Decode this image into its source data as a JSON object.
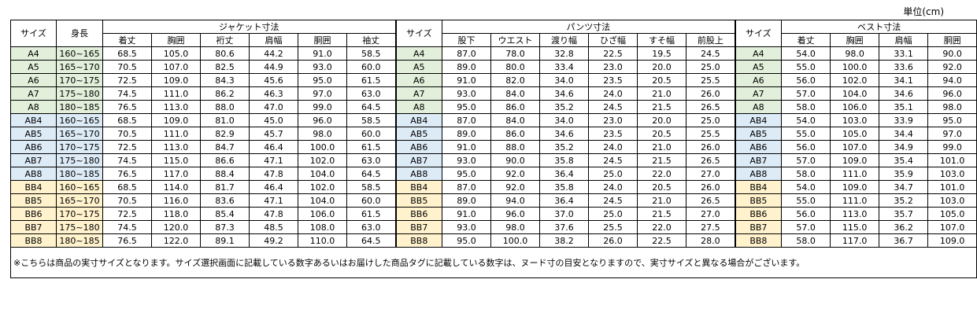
{
  "unit_label": "単位(cm)",
  "headers": {
    "size": "サイズ",
    "height": "身長",
    "jacket_group": "ジャケット寸法",
    "pants_group": "パンツ寸法",
    "vest_group": "ベスト寸法",
    "jacket_cols": [
      "着丈",
      "胸囲",
      "裄丈",
      "肩幅",
      "胴囲",
      "袖丈"
    ],
    "pants_cols": [
      "股下",
      "ウエスト",
      "渡り幅",
      "ひざ幅",
      "すそ幅",
      "前股上"
    ],
    "vest_cols": [
      "着丈",
      "胸囲",
      "肩幅",
      "胴囲"
    ]
  },
  "rows": [
    {
      "size": "A4",
      "height": "160~165",
      "jacket": [
        "68.5",
        "105.0",
        "80.6",
        "44.2",
        "91.0",
        "58.5"
      ],
      "pants": [
        "87.0",
        "78.0",
        "32.8",
        "22.5",
        "19.5",
        "24.5"
      ],
      "vest": [
        "54.0",
        "98.0",
        "33.1",
        "90.0"
      ]
    },
    {
      "size": "A5",
      "height": "165~170",
      "jacket": [
        "70.5",
        "107.0",
        "82.5",
        "44.9",
        "93.0",
        "60.0"
      ],
      "pants": [
        "89.0",
        "80.0",
        "33.4",
        "23.0",
        "20.0",
        "25.0"
      ],
      "vest": [
        "55.0",
        "100.0",
        "33.6",
        "92.0"
      ]
    },
    {
      "size": "A6",
      "height": "170~175",
      "jacket": [
        "72.5",
        "109.0",
        "84.3",
        "45.6",
        "95.0",
        "61.5"
      ],
      "pants": [
        "91.0",
        "82.0",
        "34.0",
        "23.5",
        "20.5",
        "25.5"
      ],
      "vest": [
        "56.0",
        "102.0",
        "34.1",
        "94.0"
      ]
    },
    {
      "size": "A7",
      "height": "175~180",
      "jacket": [
        "74.5",
        "111.0",
        "86.2",
        "46.3",
        "97.0",
        "63.0"
      ],
      "pants": [
        "93.0",
        "84.0",
        "34.6",
        "24.0",
        "21.0",
        "26.0"
      ],
      "vest": [
        "57.0",
        "104.0",
        "34.6",
        "96.0"
      ]
    },
    {
      "size": "A8",
      "height": "180~185",
      "jacket": [
        "76.5",
        "113.0",
        "88.0",
        "47.0",
        "99.0",
        "64.5"
      ],
      "pants": [
        "95.0",
        "86.0",
        "35.2",
        "24.5",
        "21.5",
        "26.5"
      ],
      "vest": [
        "58.0",
        "106.0",
        "35.1",
        "98.0"
      ]
    },
    {
      "size": "AB4",
      "height": "160~165",
      "jacket": [
        "68.5",
        "109.0",
        "81.0",
        "45.0",
        "96.0",
        "58.5"
      ],
      "pants": [
        "87.0",
        "84.0",
        "34.0",
        "23.0",
        "20.0",
        "25.0"
      ],
      "vest": [
        "54.0",
        "103.0",
        "33.9",
        "95.0"
      ]
    },
    {
      "size": "AB5",
      "height": "165~170",
      "jacket": [
        "70.5",
        "111.0",
        "82.9",
        "45.7",
        "98.0",
        "60.0"
      ],
      "pants": [
        "89.0",
        "86.0",
        "34.6",
        "23.5",
        "20.5",
        "25.5"
      ],
      "vest": [
        "55.0",
        "105.0",
        "34.4",
        "97.0"
      ]
    },
    {
      "size": "AB6",
      "height": "170~175",
      "jacket": [
        "72.5",
        "113.0",
        "84.7",
        "46.4",
        "100.0",
        "61.5"
      ],
      "pants": [
        "91.0",
        "88.0",
        "35.2",
        "24.0",
        "21.0",
        "26.0"
      ],
      "vest": [
        "56.0",
        "107.0",
        "34.9",
        "99.0"
      ]
    },
    {
      "size": "AB7",
      "height": "175~180",
      "jacket": [
        "74.5",
        "115.0",
        "86.6",
        "47.1",
        "102.0",
        "63.0"
      ],
      "pants": [
        "93.0",
        "90.0",
        "35.8",
        "24.5",
        "21.5",
        "26.5"
      ],
      "vest": [
        "57.0",
        "109.0",
        "35.4",
        "101.0"
      ]
    },
    {
      "size": "AB8",
      "height": "180~185",
      "jacket": [
        "76.5",
        "117.0",
        "88.4",
        "47.8",
        "104.0",
        "64.5"
      ],
      "pants": [
        "95.0",
        "92.0",
        "36.4",
        "25.0",
        "22.0",
        "27.0"
      ],
      "vest": [
        "58.0",
        "111.0",
        "35.9",
        "103.0"
      ]
    },
    {
      "size": "BB4",
      "height": "160~165",
      "jacket": [
        "68.5",
        "114.0",
        "81.7",
        "46.4",
        "102.0",
        "58.5"
      ],
      "pants": [
        "87.0",
        "92.0",
        "35.8",
        "24.0",
        "20.5",
        "26.0"
      ],
      "vest": [
        "54.0",
        "109.0",
        "34.7",
        "101.0"
      ]
    },
    {
      "size": "BB5",
      "height": "165~170",
      "jacket": [
        "70.5",
        "116.0",
        "83.6",
        "47.1",
        "104.0",
        "60.0"
      ],
      "pants": [
        "89.0",
        "94.0",
        "36.4",
        "24.5",
        "21.0",
        "26.5"
      ],
      "vest": [
        "55.0",
        "111.0",
        "35.2",
        "103.0"
      ]
    },
    {
      "size": "BB6",
      "height": "170~175",
      "jacket": [
        "72.5",
        "118.0",
        "85.4",
        "47.8",
        "106.0",
        "61.5"
      ],
      "pants": [
        "91.0",
        "96.0",
        "37.0",
        "25.0",
        "21.5",
        "27.0"
      ],
      "vest": [
        "56.0",
        "113.0",
        "35.7",
        "105.0"
      ]
    },
    {
      "size": "BB7",
      "height": "175~180",
      "jacket": [
        "74.5",
        "120.0",
        "87.3",
        "48.5",
        "108.0",
        "63.0"
      ],
      "pants": [
        "93.0",
        "98.0",
        "37.6",
        "25.5",
        "22.0",
        "27.5"
      ],
      "vest": [
        "57.0",
        "115.0",
        "36.2",
        "107.0"
      ]
    },
    {
      "size": "BB8",
      "height": "180~185",
      "jacket": [
        "76.5",
        "122.0",
        "89.1",
        "49.2",
        "110.0",
        "64.5"
      ],
      "pants": [
        "95.0",
        "100.0",
        "38.2",
        "26.0",
        "22.5",
        "28.0"
      ],
      "vest": [
        "58.0",
        "117.0",
        "36.7",
        "109.0"
      ]
    }
  ],
  "note": "※こちらは商品の実寸サイズとなります。サイズ選択画面に記載している数字あるいはお届けした商品タグに記載している数字は、ヌード寸の目安となりますので、実寸サイズと異なる場合がございます。"
}
